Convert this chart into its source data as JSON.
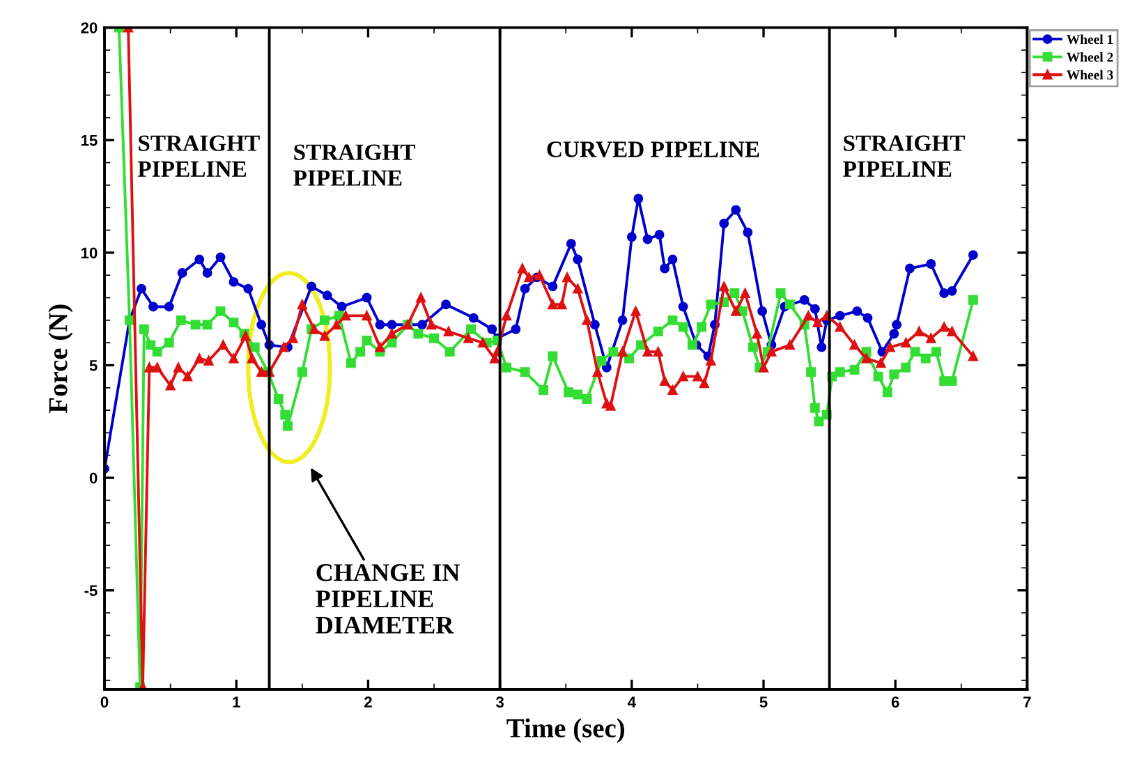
{
  "chart_data": {
    "type": "line",
    "xlabel": "Time (sec)",
    "ylabel": "Force (N)",
    "xlim": [
      0,
      7
    ],
    "xticks": [
      0,
      1,
      2,
      3,
      4,
      5,
      6,
      7
    ],
    "ylim": [
      -9.4,
      20
    ],
    "yticks": [
      -5,
      0,
      5,
      10,
      15,
      20
    ],
    "grid": false,
    "legend": "top right",
    "line_style": "solid",
    "ref_lines": [
      {
        "axis": "x",
        "value": 1.25,
        "color": "#000000"
      },
      {
        "axis": "x",
        "value": 3,
        "color": "#000000"
      },
      {
        "axis": "x",
        "value": 5.5,
        "color": "#000000"
      }
    ],
    "annotations": [
      "STRAIGHT\nPIPELINE",
      "STRAIGHT\nPIPELINE",
      "CURVED PIPELINE",
      "STRAIGHT\nPIPELINE",
      "CHANGE IN\nPIPELINE\nDIAMETER"
    ],
    "series": [
      {
        "name": "Wheel 1",
        "color": "#0000cc",
        "marker": "circle",
        "x": [
          0.0,
          0.19,
          0.28,
          0.37,
          0.49,
          0.59,
          0.72,
          0.78,
          0.88,
          0.98,
          1.09,
          1.19,
          1.25,
          1.39,
          1.57,
          1.69,
          1.8,
          1.99,
          2.09,
          2.18,
          2.41,
          2.59,
          2.8,
          2.94,
          2.98,
          3.12,
          3.19,
          3.28,
          3.4,
          3.54,
          3.59,
          3.72,
          3.81,
          3.93,
          4.0,
          4.05,
          4.12,
          4.21,
          4.25,
          4.31,
          4.39,
          4.49,
          4.58,
          4.63,
          4.7,
          4.79,
          4.88,
          4.99,
          5.06,
          5.16,
          5.31,
          5.39,
          5.44,
          5.48,
          5.58,
          5.71,
          5.79,
          5.9,
          5.99,
          6.01,
          6.11,
          6.27,
          6.37,
          6.43,
          6.59
        ],
        "values": [
          0.4,
          7.0,
          8.4,
          7.6,
          7.6,
          9.1,
          9.7,
          9.1,
          9.8,
          8.7,
          8.4,
          6.8,
          5.9,
          5.8,
          8.5,
          8.1,
          7.6,
          8.0,
          6.8,
          6.8,
          6.8,
          7.7,
          7.1,
          6.6,
          6.2,
          6.6,
          8.4,
          8.9,
          8.5,
          10.4,
          9.7,
          6.8,
          4.9,
          7.0,
          10.7,
          12.4,
          10.6,
          10.8,
          9.3,
          9.7,
          7.6,
          5.9,
          5.4,
          6.8,
          11.3,
          11.9,
          10.9,
          7.4,
          5.9,
          7.6,
          7.9,
          7.5,
          5.8,
          7.0,
          7.2,
          7.4,
          7.1,
          5.6,
          6.4,
          6.8,
          9.3,
          9.5,
          8.2,
          8.3,
          9.9
        ]
      },
      {
        "name": "Wheel 2",
        "color": "#33dd33",
        "marker": "square",
        "x": [
          0.11,
          0.19,
          0.27,
          0.3,
          0.35,
          0.4,
          0.49,
          0.58,
          0.69,
          0.78,
          0.88,
          0.98,
          1.06,
          1.14,
          1.24,
          1.32,
          1.37,
          1.39,
          1.5,
          1.57,
          1.67,
          1.78,
          1.87,
          1.94,
          1.99,
          2.09,
          2.18,
          2.3,
          2.38,
          2.5,
          2.62,
          2.78,
          2.9,
          2.98,
          3.05,
          3.19,
          3.33,
          3.4,
          3.52,
          3.59,
          3.66,
          3.77,
          3.86,
          3.98,
          4.07,
          4.2,
          4.31,
          4.39,
          4.46,
          4.53,
          4.6,
          4.7,
          4.78,
          4.84,
          4.92,
          4.97,
          5.03,
          5.13,
          5.2,
          5.31,
          5.36,
          5.39,
          5.42,
          5.48,
          5.52,
          5.58,
          5.69,
          5.78,
          5.87,
          5.94,
          5.99,
          6.08,
          6.15,
          6.23,
          6.31,
          6.37,
          6.43,
          6.59
        ],
        "values": [
          20,
          7.0,
          -9.3,
          6.6,
          5.9,
          5.6,
          6.0,
          7.0,
          6.8,
          6.8,
          7.4,
          6.9,
          6.4,
          5.8,
          4.7,
          3.5,
          2.8,
          2.3,
          4.7,
          6.6,
          7.0,
          7.2,
          5.1,
          5.6,
          6.1,
          5.6,
          6.0,
          6.8,
          6.4,
          6.2,
          5.6,
          6.6,
          6.0,
          6.1,
          4.9,
          4.7,
          3.9,
          5.4,
          3.8,
          3.7,
          3.5,
          5.2,
          5.6,
          5.3,
          5.9,
          6.5,
          7.0,
          6.7,
          5.9,
          6.7,
          7.7,
          7.8,
          8.2,
          7.4,
          5.8,
          4.9,
          5.6,
          8.2,
          7.7,
          6.8,
          4.7,
          3.1,
          2.5,
          2.8,
          4.5,
          4.7,
          4.8,
          5.6,
          4.5,
          3.8,
          4.6,
          4.9,
          5.6,
          5.3,
          5.6,
          4.3,
          4.3,
          7.9
        ]
      },
      {
        "name": "Wheel 3",
        "color": "#dd1111",
        "marker": "triangle",
        "x": [
          0.18,
          0.29,
          0.34,
          0.4,
          0.5,
          0.56,
          0.63,
          0.72,
          0.79,
          0.9,
          0.98,
          1.07,
          1.12,
          1.19,
          1.25,
          1.36,
          1.43,
          1.5,
          1.59,
          1.67,
          1.76,
          1.83,
          1.99,
          2.09,
          2.18,
          2.3,
          2.4,
          2.48,
          2.61,
          2.76,
          2.87,
          2.96,
          2.98,
          3.05,
          3.17,
          3.22,
          3.3,
          3.4,
          3.47,
          3.51,
          3.59,
          3.66,
          3.74,
          3.81,
          3.84,
          3.93,
          4.03,
          4.12,
          4.2,
          4.25,
          4.31,
          4.39,
          4.5,
          4.55,
          4.6,
          4.7,
          4.79,
          4.86,
          4.95,
          5.0,
          5.06,
          5.2,
          5.34,
          5.41,
          5.48,
          5.58,
          5.69,
          5.78,
          5.89,
          5.96,
          6.08,
          6.18,
          6.27,
          6.37,
          6.43,
          6.59
        ],
        "values": [
          20,
          -9.3,
          4.9,
          4.9,
          4.1,
          4.9,
          4.5,
          5.3,
          5.2,
          5.9,
          5.3,
          6.3,
          5.3,
          4.7,
          4.7,
          5.8,
          6.2,
          7.7,
          6.6,
          6.3,
          6.8,
          7.2,
          7.2,
          5.8,
          6.4,
          6.8,
          8.0,
          6.8,
          6.5,
          6.2,
          6.0,
          5.3,
          5.6,
          7.2,
          9.3,
          8.9,
          9.0,
          7.7,
          7.7,
          8.9,
          8.4,
          7.0,
          4.7,
          3.3,
          3.2,
          5.6,
          7.4,
          5.6,
          5.6,
          4.3,
          3.9,
          4.5,
          4.5,
          4.2,
          5.2,
          8.5,
          7.4,
          8.2,
          6.4,
          4.9,
          5.6,
          5.9,
          7.2,
          6.9,
          7.2,
          6.7,
          5.9,
          5.3,
          5.1,
          5.8,
          6.0,
          6.5,
          6.2,
          6.7,
          6.5,
          5.4
        ]
      }
    ]
  }
}
